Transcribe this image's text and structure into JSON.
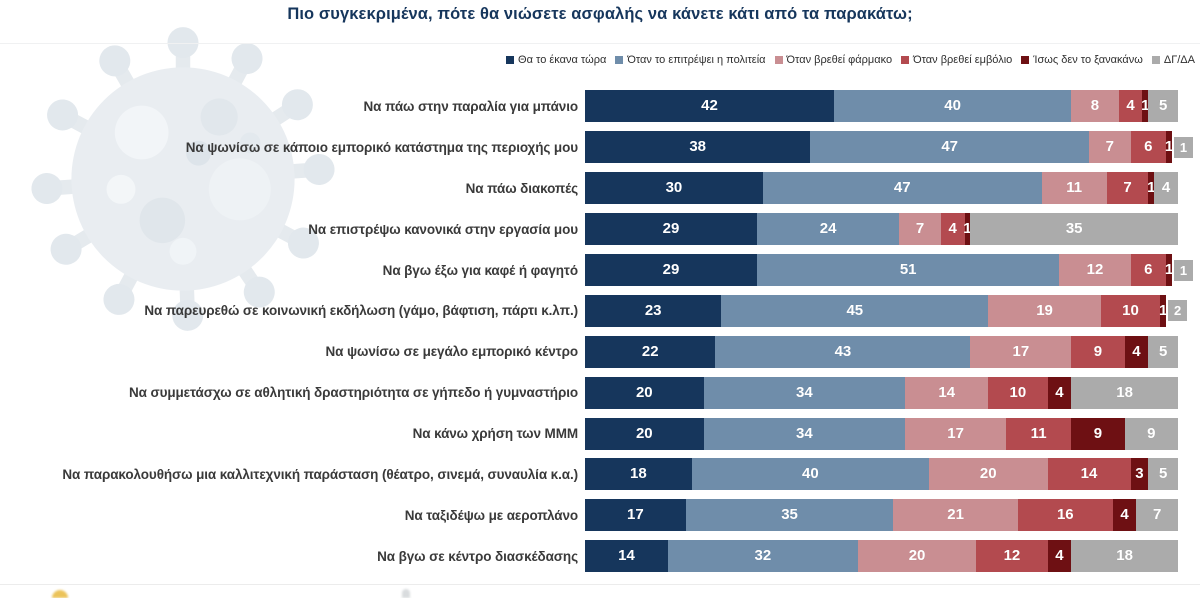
{
  "title": "Πιο συγκεκριμένα, πότε θα νιώσετε ασφαλής να κάνετε κάτι από τα παρακάτω;",
  "colors": {
    "title_text": "#16365c",
    "category_text": "#3a3a3a",
    "value_text": "#ffffff",
    "background": "#ffffff",
    "virus_graphic": "#e9edf1"
  },
  "icons": {
    "background_graphic": "coronavirus-icon"
  },
  "chart_data": {
    "type": "bar",
    "orientation": "horizontal",
    "stacked": true,
    "unit": "%",
    "xlim": [
      0,
      100
    ],
    "grid": false,
    "legend_position": "top-right",
    "value_labels": "inside-white-bold",
    "series": [
      {
        "name": "Θα το έκανα τώρα",
        "color": "#16365c"
      },
      {
        "name": "Όταν το επιτρέψει η πολιτεία",
        "color": "#6f8daa"
      },
      {
        "name": "Όταν βρεθεί φάρμακο",
        "color": "#c98e92"
      },
      {
        "name": "Όταν βρεθεί εμβόλιο",
        "color": "#b34a4f"
      },
      {
        "name": "Ίσως δεν το ξανακάνω",
        "color": "#6e1013"
      },
      {
        "name": "ΔΓ/ΔΑ",
        "color": "#ababab"
      }
    ],
    "categories": [
      "Να πάω στην παραλία για μπάνιο",
      "Να ψωνίσω σε κάποιο εμπορικό κατάστημα της περιοχής μου",
      "Να πάω διακοπές",
      "Να επιστρέψω κανονικά στην εργασία μου",
      "Να βγω έξω για καφέ ή φαγητό",
      "Να παρευρεθώ σε κοινωνική εκδήλωση (γάμο, βάφτιση, πάρτι κ.λπ.)",
      "Να ψωνίσω σε μεγάλο εμπορικό κέντρο",
      "Να συμμετάσχω σε αθλητική δραστηριότητα σε γήπεδο ή γυμναστήριο",
      "Να κάνω χρήση των ΜΜΜ",
      "Να παρακολουθήσω μια καλλιτεχνική παράσταση (θέατρο, σινεμά, συναυλία κ.α.)",
      "Να ταξιδέψω με αεροπλάνο",
      "Να βγω σε κέντρο διασκέδασης"
    ],
    "rows": [
      [
        42,
        40,
        8,
        4,
        1,
        5
      ],
      [
        38,
        47,
        7,
        6,
        1,
        1
      ],
      [
        30,
        47,
        11,
        7,
        1,
        4
      ],
      [
        29,
        24,
        7,
        4,
        1,
        35
      ],
      [
        29,
        51,
        12,
        6,
        1,
        1
      ],
      [
        23,
        45,
        19,
        10,
        1,
        2
      ],
      [
        22,
        43,
        17,
        9,
        4,
        5
      ],
      [
        20,
        34,
        14,
        10,
        4,
        18
      ],
      [
        20,
        34,
        17,
        11,
        9,
        9
      ],
      [
        18,
        40,
        20,
        14,
        3,
        5
      ],
      [
        17,
        35,
        21,
        16,
        4,
        7
      ],
      [
        14,
        32,
        20,
        12,
        4,
        18
      ]
    ]
  }
}
